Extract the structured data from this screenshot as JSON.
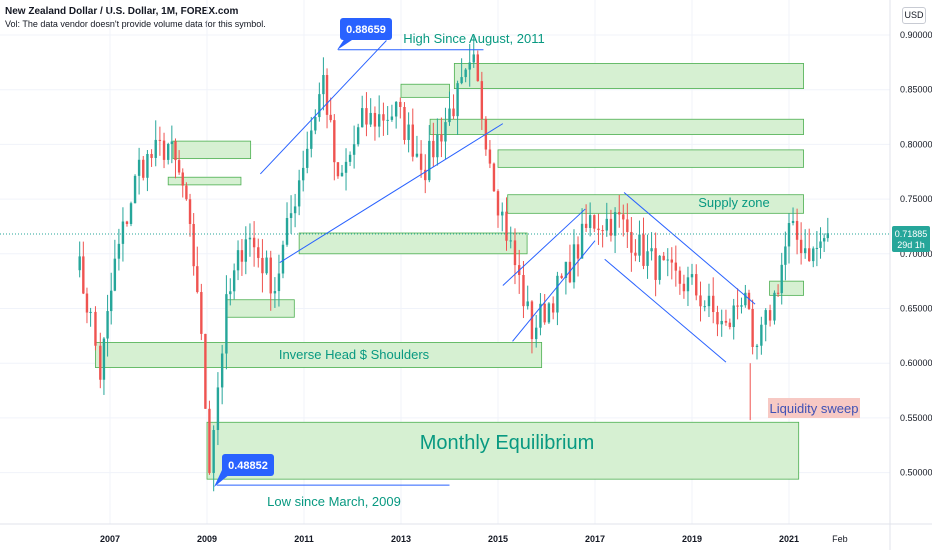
{
  "header": {
    "title": "New Zealand Dollar / U.S. Dollar, 1M, FOREX.com",
    "volume_note": "Vol: The data vendor doesn't provide volume data for this symbol.",
    "currency": "USD"
  },
  "chart_data": {
    "type": "candlestick",
    "x_ticks": [
      "2007",
      "2009",
      "2011",
      "2013",
      "2015",
      "2017",
      "2019",
      "2021",
      "Feb"
    ],
    "y_ticks": [
      "0.90000",
      "0.85000",
      "0.80000",
      "0.75000",
      "0.70000",
      "0.65000",
      "0.60000",
      "0.55000",
      "0.50000"
    ],
    "ylim": [
      0.465,
      0.91
    ],
    "last_price": {
      "value": "0.71885",
      "countdown": "29d 1h"
    },
    "colors": {
      "up": "#26a69a",
      "down": "#ef5350",
      "zone_fill": "#d6f0d2",
      "zone_stroke": "#4caf50",
      "trendline": "#2962ff",
      "label_text": "#089981",
      "label_bg": "#2962ff",
      "sweep_bg": "#f7c9c4",
      "sweep_text": "#3f51b5"
    },
    "anchors": [
      {
        "year": 2006.3,
        "close": 0.7
      },
      {
        "year": 2006.6,
        "close": 0.64
      },
      {
        "year": 2006.8,
        "close": 0.59
      },
      {
        "year": 2007.1,
        "close": 0.69
      },
      {
        "year": 2007.6,
        "close": 0.78
      },
      {
        "year": 2008.2,
        "close": 0.8
      },
      {
        "year": 2008.5,
        "close": 0.76
      },
      {
        "year": 2008.8,
        "close": 0.67
      },
      {
        "year": 2009.05,
        "close": 0.51
      },
      {
        "year": 2009.4,
        "close": 0.65
      },
      {
        "year": 2009.8,
        "close": 0.72
      },
      {
        "year": 2010.4,
        "close": 0.67
      },
      {
        "year": 2010.9,
        "close": 0.77
      },
      {
        "year": 2011.4,
        "close": 0.86
      },
      {
        "year": 2011.7,
        "close": 0.76
      },
      {
        "year": 2012.2,
        "close": 0.82
      },
      {
        "year": 2012.9,
        "close": 0.83
      },
      {
        "year": 2013.5,
        "close": 0.78
      },
      {
        "year": 2014.0,
        "close": 0.83
      },
      {
        "year": 2014.5,
        "close": 0.87
      },
      {
        "year": 2015.0,
        "close": 0.75
      },
      {
        "year": 2015.7,
        "close": 0.63
      },
      {
        "year": 2016.4,
        "close": 0.68
      },
      {
        "year": 2016.9,
        "close": 0.73
      },
      {
        "year": 2017.5,
        "close": 0.73
      },
      {
        "year": 2018.0,
        "close": 0.7
      },
      {
        "year": 2018.5,
        "close": 0.68
      },
      {
        "year": 2019.0,
        "close": 0.67
      },
      {
        "year": 2019.7,
        "close": 0.63
      },
      {
        "year": 2020.1,
        "close": 0.67
      },
      {
        "year": 2020.25,
        "close": 0.6
      },
      {
        "year": 2020.7,
        "close": 0.66
      },
      {
        "year": 2021.0,
        "close": 0.72
      },
      {
        "year": 2021.5,
        "close": 0.7
      },
      {
        "year": 2021.8,
        "close": 0.71885
      }
    ],
    "zones": [
      {
        "x0": 2008.3,
        "x1": 2009.9,
        "y0": 0.803,
        "y1": 0.787
      },
      {
        "x0": 2008.2,
        "x1": 2009.7,
        "y0": 0.77,
        "y1": 0.763
      },
      {
        "x0": 2009.4,
        "x1": 2010.8,
        "y0": 0.658,
        "y1": 0.642
      },
      {
        "x0": 2006.7,
        "x1": 2015.9,
        "y0": 0.619,
        "y1": 0.596
      },
      {
        "x0": 2009.0,
        "x1": 2021.2,
        "y0": 0.546,
        "y1": 0.494
      },
      {
        "x0": 2010.9,
        "x1": 2015.6,
        "y0": 0.719,
        "y1": 0.7
      },
      {
        "x0": 2013.0,
        "x1": 2014.0,
        "y0": 0.855,
        "y1": 0.843
      },
      {
        "x0": 2014.1,
        "x1": 2021.3,
        "y0": 0.874,
        "y1": 0.851
      },
      {
        "x0": 2013.6,
        "x1": 2021.3,
        "y0": 0.823,
        "y1": 0.809
      },
      {
        "x0": 2015.0,
        "x1": 2021.3,
        "y0": 0.795,
        "y1": 0.779
      },
      {
        "x0": 2015.2,
        "x1": 2021.3,
        "y0": 0.754,
        "y1": 0.737
      },
      {
        "x0": 2020.6,
        "x1": 2021.3,
        "y0": 0.675,
        "y1": 0.662
      }
    ],
    "trendlines": [
      {
        "x0": 2010.1,
        "y0": 0.773,
        "x1": 2012.7,
        "y1": 0.895
      },
      {
        "x0": 2010.5,
        "y0": 0.692,
        "x1": 2015.1,
        "y1": 0.819
      },
      {
        "x0": 2015.1,
        "y0": 0.671,
        "x1": 2016.8,
        "y1": 0.741
      },
      {
        "x0": 2015.3,
        "y0": 0.62,
        "x1": 2017.0,
        "y1": 0.712
      },
      {
        "x0": 2017.2,
        "y0": 0.695,
        "x1": 2019.7,
        "y1": 0.601
      },
      {
        "x0": 2017.6,
        "y0": 0.756,
        "x1": 2020.3,
        "y1": 0.654
      },
      {
        "x0": 2011.7,
        "y0": 0.8865,
        "x1": 2014.7,
        "y1": 0.8865
      },
      {
        "x0": 2009.2,
        "y0": 0.4885,
        "x1": 2014.0,
        "y1": 0.4885
      }
    ],
    "annotations": {
      "high_since": "High Since August, 2011",
      "high_price": "0.88659",
      "low_price": "0.48852",
      "low_since": "Low since March, 2009",
      "ihs": "Inverse Head $ Shoulders",
      "equilibrium": "Monthly Equilibrium",
      "supply": "Supply zone",
      "sweep": "Liquidity sweep"
    }
  }
}
